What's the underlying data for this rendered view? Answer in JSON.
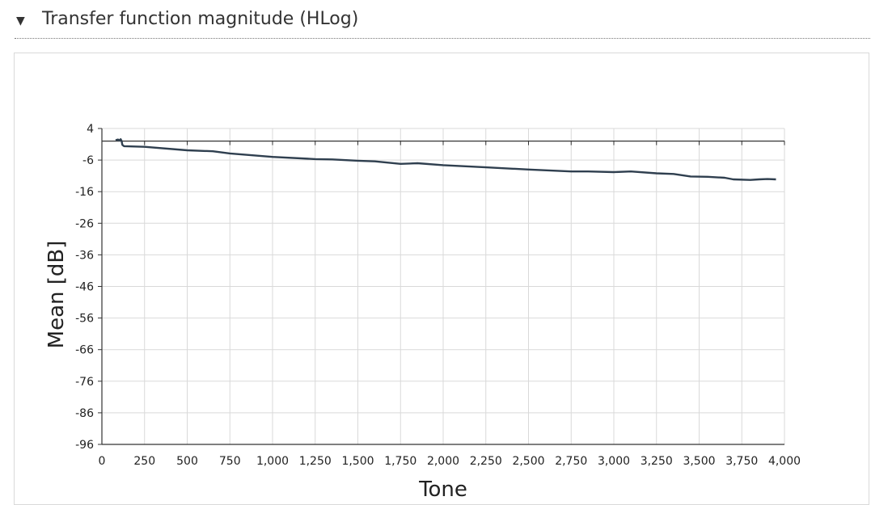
{
  "section": {
    "title": "Transfer function magnitude (HLog)",
    "toggle_icon": "triangle-down-icon"
  },
  "chart_data": {
    "type": "line",
    "xlabel": "Tone",
    "ylabel": "Mean [dB]",
    "xlim": [
      0,
      4000
    ],
    "ylim": [
      -96,
      4
    ],
    "reference_line_y": 0,
    "grid": true,
    "x_ticks": [
      0,
      250,
      500,
      750,
      1000,
      1250,
      1500,
      1750,
      2000,
      2250,
      2500,
      2750,
      3000,
      3250,
      3500,
      3750,
      4000
    ],
    "x_tick_labels": [
      "0",
      "250",
      "500",
      "750",
      "1,000",
      "1,250",
      "1,500",
      "1,750",
      "2,000",
      "2,250",
      "2,500",
      "2,750",
      "3,000",
      "3,250",
      "3,500",
      "3,750",
      "4,000"
    ],
    "y_ticks": [
      4,
      -6,
      -16,
      -26,
      -36,
      -46,
      -56,
      -66,
      -76,
      -86,
      -96
    ],
    "y_tick_labels": [
      "4",
      "-6",
      "-16",
      "-26",
      "-36",
      "-46",
      "-56",
      "-66",
      "-76",
      "-86",
      "-96"
    ],
    "line_color": "#2f3f4f",
    "series": [
      {
        "x": [
          80,
          95,
          100,
          110,
          115,
          120,
          130,
          250,
          500,
          650,
          750,
          1000,
          1250,
          1350,
          1500,
          1600,
          1750,
          1850,
          2000,
          2250,
          2500,
          2750,
          2850,
          3000,
          3100,
          3250,
          3350,
          3450,
          3550,
          3650,
          3700,
          3800,
          3850,
          3900,
          3950
        ],
        "y": [
          0.3,
          0.5,
          0.2,
          0.6,
          0.1,
          -1.2,
          -1.6,
          -1.8,
          -2.9,
          -3.2,
          -3.9,
          -5.0,
          -5.7,
          -5.8,
          -6.2,
          -6.4,
          -7.2,
          -7.0,
          -7.6,
          -8.3,
          -9.0,
          -9.6,
          -9.6,
          -9.8,
          -9.6,
          -10.2,
          -10.4,
          -11.2,
          -11.3,
          -11.6,
          -12.1,
          -12.3,
          -12.1,
          -12.0,
          -12.1
        ]
      }
    ]
  }
}
